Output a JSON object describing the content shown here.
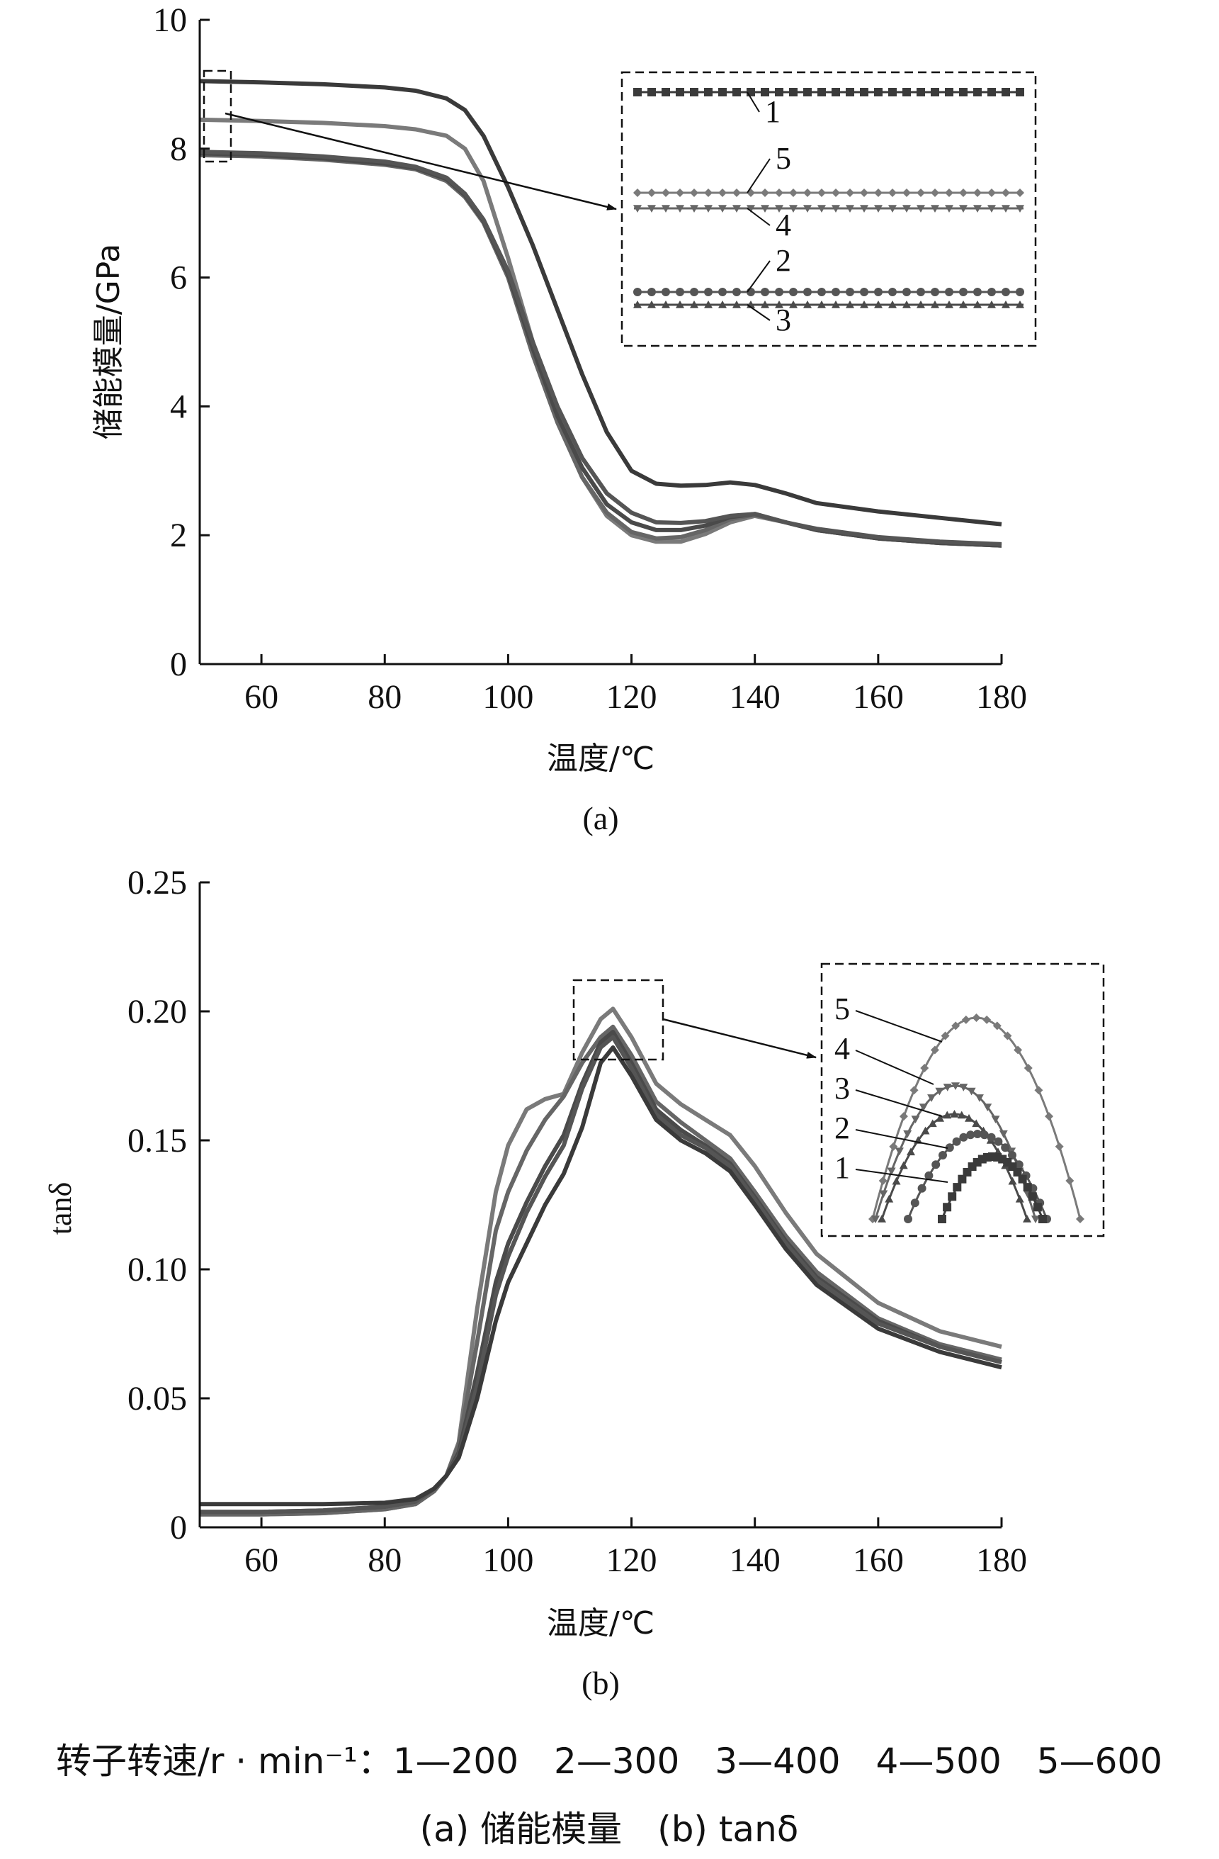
{
  "chart_data": [
    {
      "panel_label": "(a)",
      "type": "line",
      "xlabel": "温度/℃",
      "ylabel": "储能模量/GPa",
      "xlim": [
        50,
        180
      ],
      "ylim": [
        0,
        10
      ],
      "xticks": [
        60,
        80,
        100,
        120,
        140,
        160,
        180
      ],
      "yticks": [
        0,
        2,
        4,
        6,
        8,
        10
      ],
      "grid": false,
      "x": [
        50,
        60,
        70,
        80,
        85,
        90,
        93,
        96,
        100,
        104,
        108,
        112,
        116,
        120,
        124,
        128,
        132,
        136,
        140,
        145,
        150,
        160,
        170,
        180
      ],
      "series": [
        {
          "name": "1",
          "values": [
            9.05,
            9.03,
            9.0,
            8.95,
            8.9,
            8.78,
            8.6,
            8.2,
            7.4,
            6.5,
            5.5,
            4.5,
            3.6,
            3.0,
            2.8,
            2.77,
            2.78,
            2.82,
            2.78,
            2.65,
            2.5,
            2.37,
            2.27,
            2.17
          ]
        },
        {
          "name": "2",
          "values": [
            7.95,
            7.93,
            7.88,
            7.8,
            7.72,
            7.55,
            7.3,
            6.9,
            6.1,
            5.0,
            4.0,
            3.2,
            2.65,
            2.35,
            2.2,
            2.19,
            2.22,
            2.3,
            2.33,
            2.2,
            2.1,
            1.97,
            1.9,
            1.86
          ]
        },
        {
          "name": "3",
          "values": [
            7.93,
            7.9,
            7.85,
            7.77,
            7.7,
            7.53,
            7.28,
            6.88,
            6.05,
            4.9,
            3.85,
            3.05,
            2.48,
            2.2,
            2.08,
            2.08,
            2.15,
            2.28,
            2.33,
            2.2,
            2.08,
            1.95,
            1.88,
            1.84
          ]
        },
        {
          "name": "4",
          "values": [
            7.9,
            7.88,
            7.83,
            7.75,
            7.68,
            7.5,
            7.25,
            6.85,
            6.0,
            4.8,
            3.75,
            2.9,
            2.35,
            2.05,
            1.95,
            1.97,
            2.08,
            2.25,
            2.32,
            2.2,
            2.08,
            1.95,
            1.88,
            1.84
          ]
        },
        {
          "name": "5",
          "values": [
            8.45,
            8.43,
            8.4,
            8.35,
            8.3,
            8.2,
            8.0,
            7.5,
            6.3,
            5.0,
            3.8,
            2.9,
            2.3,
            2.0,
            1.9,
            1.9,
            2.02,
            2.2,
            2.3,
            2.2,
            2.08,
            1.95,
            1.88,
            1.84
          ]
        }
      ],
      "inset": {
        "labels": [
          "1",
          "5",
          "4",
          "2",
          "3"
        ]
      }
    },
    {
      "panel_label": "(b)",
      "type": "line",
      "xlabel": "温度/℃",
      "ylabel": "tanδ",
      "xlim": [
        50,
        180
      ],
      "ylim": [
        0,
        0.25
      ],
      "xticks": [
        60,
        80,
        100,
        120,
        140,
        160,
        180
      ],
      "yticks": [
        "0",
        "0.05",
        "0.10",
        "0.15",
        "0.20",
        "0.25"
      ],
      "grid": false,
      "x": [
        50,
        60,
        70,
        80,
        85,
        88,
        90,
        92,
        95,
        98,
        100,
        103,
        106,
        109,
        112,
        115,
        117,
        120,
        124,
        128,
        132,
        136,
        140,
        145,
        150,
        160,
        170,
        180
      ],
      "series": [
        {
          "name": "1",
          "values": [
            0.009,
            0.009,
            0.009,
            0.0095,
            0.011,
            0.015,
            0.02,
            0.027,
            0.05,
            0.08,
            0.095,
            0.11,
            0.125,
            0.137,
            0.155,
            0.18,
            0.186,
            0.175,
            0.158,
            0.15,
            0.145,
            0.138,
            0.125,
            0.108,
            0.094,
            0.077,
            0.068,
            0.062
          ]
        },
        {
          "name": "2",
          "values": [
            0.006,
            0.006,
            0.0065,
            0.008,
            0.01,
            0.015,
            0.02,
            0.028,
            0.055,
            0.09,
            0.105,
            0.122,
            0.136,
            0.148,
            0.17,
            0.186,
            0.19,
            0.178,
            0.16,
            0.152,
            0.147,
            0.14,
            0.127,
            0.11,
            0.096,
            0.079,
            0.07,
            0.064
          ]
        },
        {
          "name": "3",
          "values": [
            0.006,
            0.006,
            0.0065,
            0.008,
            0.01,
            0.015,
            0.02,
            0.029,
            0.06,
            0.095,
            0.11,
            0.126,
            0.14,
            0.152,
            0.172,
            0.188,
            0.192,
            0.18,
            0.162,
            0.154,
            0.148,
            0.141,
            0.128,
            0.111,
            0.097,
            0.08,
            0.07,
            0.064
          ]
        },
        {
          "name": "4",
          "values": [
            0.005,
            0.005,
            0.0055,
            0.007,
            0.009,
            0.014,
            0.02,
            0.032,
            0.072,
            0.115,
            0.13,
            0.146,
            0.158,
            0.167,
            0.18,
            0.19,
            0.194,
            0.183,
            0.165,
            0.157,
            0.15,
            0.143,
            0.13,
            0.113,
            0.099,
            0.081,
            0.071,
            0.065
          ]
        },
        {
          "name": "5",
          "values": [
            0.005,
            0.005,
            0.0055,
            0.007,
            0.009,
            0.014,
            0.02,
            0.033,
            0.085,
            0.13,
            0.148,
            0.162,
            0.166,
            0.168,
            0.184,
            0.197,
            0.201,
            0.19,
            0.172,
            0.164,
            0.158,
            0.152,
            0.14,
            0.122,
            0.106,
            0.087,
            0.076,
            0.07
          ]
        }
      ],
      "inset": {
        "labels": [
          "5",
          "4",
          "3",
          "2",
          "1"
        ]
      }
    }
  ],
  "caption": {
    "legend_line": "转子转速/r · min⁻¹：1—200　2—300　3—400　4—500　5—600",
    "sub_line": "(a) 储能模量　(b) tanδ"
  },
  "colors": {
    "axis": "#111111",
    "s1": "#3a3a3a",
    "s2": "#555555",
    "s3": "#4a4a4a",
    "s4": "#666666",
    "s5": "#7a7a7a"
  },
  "marker_names": {
    "1": "square",
    "2": "circle",
    "3": "triangle-up",
    "4": "triangle-down",
    "5": "diamond"
  }
}
